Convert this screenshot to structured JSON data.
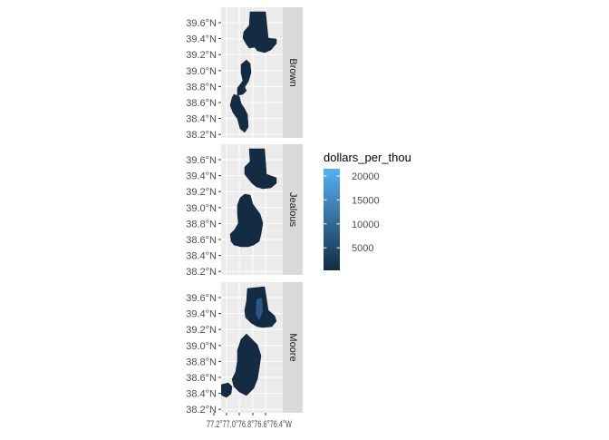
{
  "chart_data": {
    "type": "choropleth-facet",
    "facets": [
      "Brown",
      "Jealous",
      "Moore"
    ],
    "y_ticks": [
      "39.6°N",
      "39.4°N",
      "39.2°N",
      "39.0°N",
      "38.8°N",
      "38.6°N",
      "38.4°N",
      "38.2°N"
    ],
    "y_tick_values": [
      39.6,
      39.4,
      39.2,
      39.0,
      38.8,
      38.6,
      38.4,
      38.2
    ],
    "x_ticks_text": "77.2°77.0°76.8°76.6°76.4°W",
    "x_tick_values": [
      -77.2,
      -77.0,
      -76.8,
      -76.6,
      -76.4
    ],
    "legend": {
      "title": "dollars_per_thou",
      "breaks": [
        "20000",
        "15000",
        "10000",
        "5000"
      ],
      "break_values": [
        20000,
        15000,
        10000,
        5000
      ],
      "min": 300,
      "max": 21500,
      "low_color": "#132B43",
      "high_color": "#56B1F7"
    },
    "panel_background": "#EBEBEB",
    "strip_background": "#D9D9D9",
    "grid": true
  }
}
